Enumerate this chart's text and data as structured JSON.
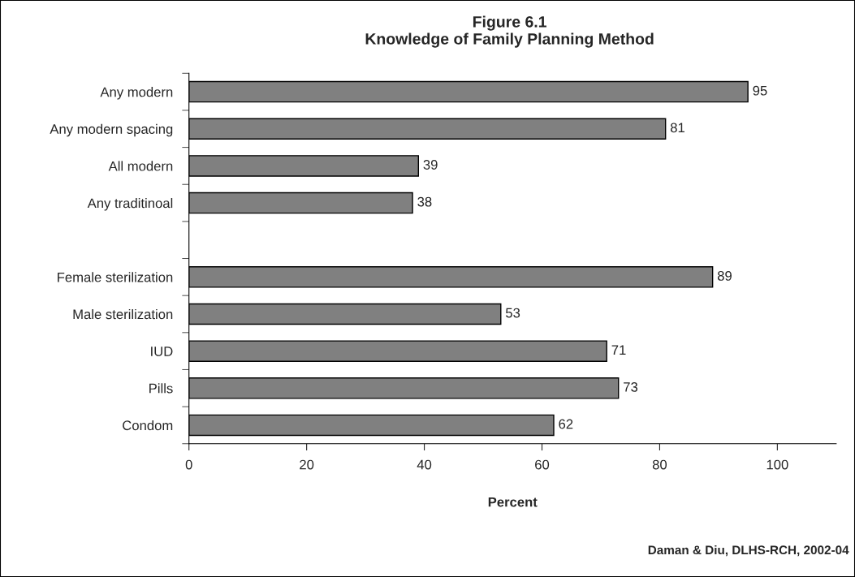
{
  "chart_data": {
    "type": "bar",
    "orientation": "horizontal",
    "title": "Figure 6.1\nKnowledge of Family Planning Method",
    "xlabel": "Percent",
    "categories": [
      "Any modern",
      "Any modern spacing",
      "All modern",
      "Any traditinoal",
      null,
      "Female sterilization",
      "Male sterilization",
      "IUD",
      "Pills",
      "Condom"
    ],
    "values": [
      95,
      81,
      39,
      38,
      null,
      89,
      53,
      71,
      73,
      62
    ],
    "color": "#808080",
    "data_labels": true,
    "xlim": [
      0,
      110
    ],
    "xticks": [
      0,
      20,
      40,
      60,
      80,
      100
    ],
    "grid": false,
    "legend": false,
    "annotations": [
      "Daman & Diu, DLHS-RCH, 2002-04"
    ]
  }
}
